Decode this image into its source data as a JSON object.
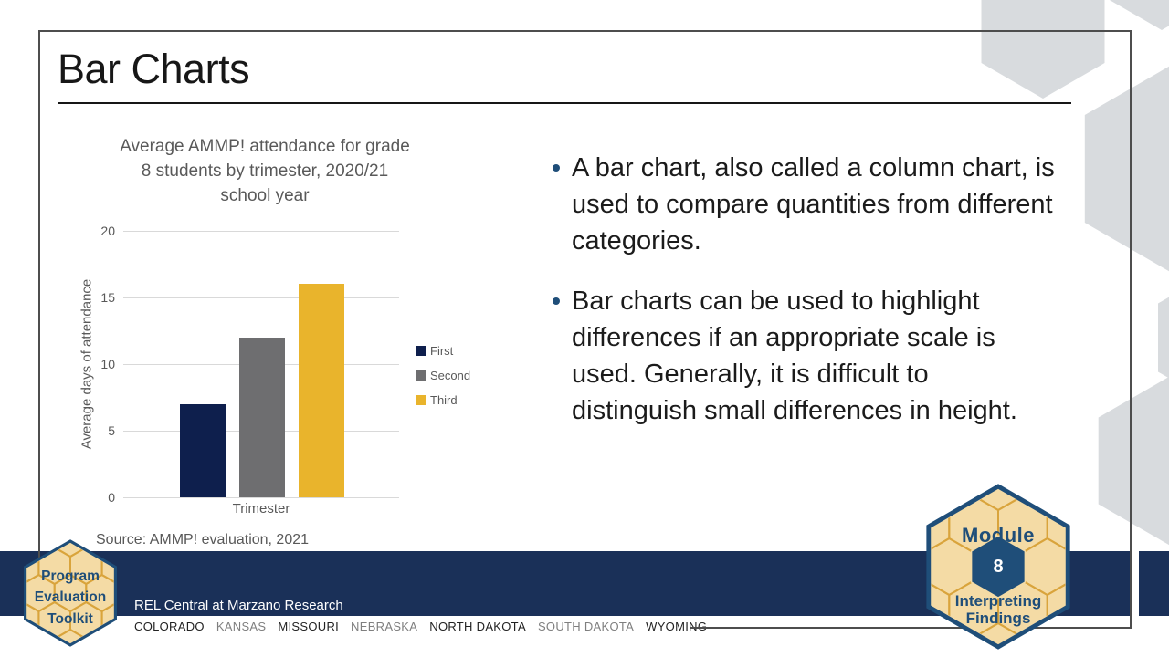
{
  "slide": {
    "title": "Bar Charts",
    "bullets": [
      "A bar chart, also called a column chart, is used to compare quantities from different categories.",
      "Bar charts can be used to highlight differences if an appropriate scale is used. Generally, it is difficult to distinguish small differences in height."
    ]
  },
  "chart_data": {
    "type": "bar",
    "title": "Average AMMP! attendance for grade 8 students by trimester, 2020/21 school year",
    "categories": [
      "First",
      "Second",
      "Third"
    ],
    "values": [
      7,
      12,
      16
    ],
    "bar_colors": [
      "#0e1f4d",
      "#6e6e70",
      "#e9b42c"
    ],
    "xlabel": "Trimester",
    "ylabel": "Average days of attendance",
    "ylim": [
      0,
      20
    ],
    "yticks": [
      0,
      5,
      10,
      15,
      20
    ],
    "legend": [
      "First",
      "Second",
      "Third"
    ],
    "legend_position": "right",
    "grid": "horizontal",
    "source": "Source: AMMP! evaluation, 2021"
  },
  "footer": {
    "org_label": "REL Central at Marzano Research",
    "states": [
      {
        "label": "COLORADO",
        "tone": "dark"
      },
      {
        "label": "KANSAS",
        "tone": "gray"
      },
      {
        "label": "MISSOURI",
        "tone": "dark"
      },
      {
        "label": "NEBRASKA",
        "tone": "gray"
      },
      {
        "label": "NORTH DAKOTA",
        "tone": "dark"
      },
      {
        "label": "SOUTH DAKOTA",
        "tone": "gray"
      },
      {
        "label": "WYOMING",
        "tone": "dark"
      }
    ]
  },
  "logos": {
    "toolkit": {
      "lines": [
        "Program",
        "Evaluation",
        "Toolkit"
      ]
    },
    "module": {
      "title": "Module",
      "number": "8",
      "subtitle": [
        "Interpreting",
        "Findings"
      ]
    }
  },
  "colors": {
    "footer_bar": "#1a3058",
    "accent_navy": "#1f4e79",
    "logo_tan": "#f4dba5",
    "logo_gold": "#d9a43c",
    "hex_gray": "#d8dbde",
    "chart_text": "#595959",
    "bullet_dot": "#1f4e79"
  }
}
